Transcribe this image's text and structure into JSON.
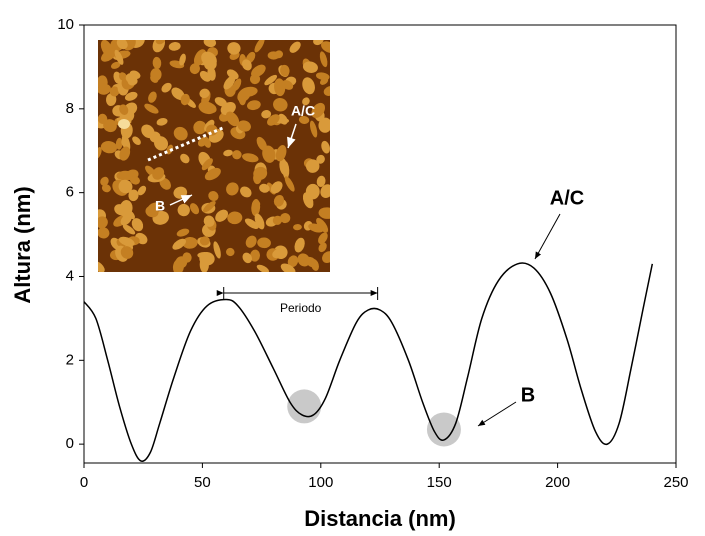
{
  "chart_data": {
    "type": "line",
    "x_label": "Distancia (nm)",
    "y_label": "Altura (nm)",
    "x": [
      0,
      5,
      10,
      15,
      20,
      24,
      28,
      32,
      38,
      45,
      52,
      60,
      65,
      72,
      80,
      87,
      92,
      97,
      102,
      108,
      115,
      120,
      125,
      130,
      137,
      143,
      148,
      152,
      157,
      162,
      168,
      175,
      183,
      190,
      197,
      204,
      210,
      216,
      221,
      226,
      231,
      236,
      240
    ],
    "values": [
      3.4,
      3.0,
      2.0,
      0.9,
      0.0,
      -0.4,
      -0.2,
      0.5,
      1.6,
      2.7,
      3.3,
      3.45,
      3.3,
      2.7,
      1.8,
      1.0,
      0.7,
      0.7,
      1.1,
      2.0,
      2.9,
      3.2,
      3.2,
      2.9,
      2.0,
      1.0,
      0.3,
      0.1,
      0.5,
      1.6,
      3.0,
      3.9,
      4.3,
      4.2,
      3.6,
      2.5,
      1.3,
      0.3,
      0.0,
      0.5,
      1.8,
      3.2,
      4.3
    ],
    "color": "#000000",
    "xlim": [
      0,
      250
    ],
    "xticks": [
      0,
      50,
      100,
      150,
      200,
      250
    ],
    "ylim": [
      -0.45,
      10
    ],
    "yticks": [
      0,
      2,
      4,
      6,
      8,
      10
    ],
    "annotations": [
      "A/C",
      "B",
      "Periodo"
    ],
    "inset_labels": [
      "A/C",
      "B"
    ]
  }
}
